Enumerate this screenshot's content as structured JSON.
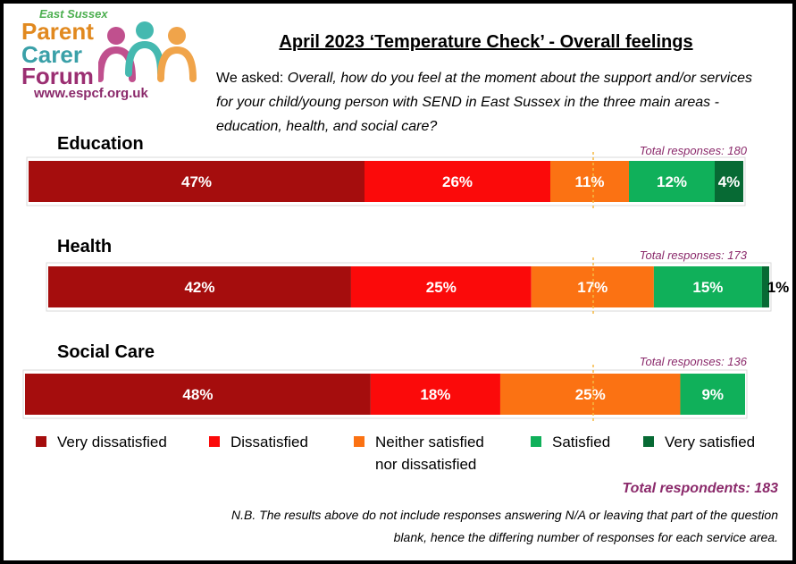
{
  "logo": {
    "line1": "East Sussex",
    "line2": "Parent",
    "line3": "Carer",
    "line4": "Forum",
    "url": "www.espcf.org.uk"
  },
  "title": "April 2023  ‘Temperature Check’ - Overall feelings",
  "question": {
    "prefix": "We asked: ",
    "text": "Overall, how do you feel at the moment about the support and/or services for your child/young person with SEND in East Sussex in the three main areas - education, health, and social care?"
  },
  "chart_data": {
    "type": "bar",
    "orientation": "horizontal-stacked-100",
    "categories": [
      "Education",
      "Health",
      "Social Care"
    ],
    "total_responses": [
      "Total responses: 180",
      "Total responses: 173",
      "Total responses: 136"
    ],
    "series": [
      {
        "name": "Very dissatisfied",
        "color": "#a50d0d",
        "values": [
          47,
          42,
          48
        ]
      },
      {
        "name": "Dissatisfied",
        "color": "#fb0a0a",
        "values": [
          26,
          25,
          18
        ]
      },
      {
        "name": "Neither satisfied nor dissatisfied",
        "color": "#fb7213",
        "values": [
          11,
          17,
          25
        ]
      },
      {
        "name": "Satisfied",
        "color": "#10b05a",
        "values": [
          12,
          15,
          9
        ]
      },
      {
        "name": "Very satisfied",
        "color": "#076a34",
        "values": [
          4,
          1,
          0
        ]
      }
    ],
    "data_labels": [
      [
        "47%",
        "26%",
        "11%",
        "12%",
        "4%"
      ],
      [
        "42%",
        "25%",
        "17%",
        "15%",
        "1%"
      ],
      [
        "48%",
        "18%",
        "25%",
        "9%",
        ""
      ]
    ],
    "legend_placement": "bottom",
    "midpoint_dashed_line": true
  },
  "legend": {
    "items": [
      {
        "label": "Very dissatisfied",
        "color": "#a50d0d"
      },
      {
        "label": "Dissatisfied",
        "color": "#fb0a0a"
      },
      {
        "label": "Neither satisfied",
        "label2": "nor dissatisfied",
        "color": "#fb7213"
      },
      {
        "label": "Satisfied",
        "color": "#10b05a"
      },
      {
        "label": "Very satisfied",
        "color": "#076a34"
      }
    ]
  },
  "total_respondents": "Total respondents: 183",
  "note": "N.B. The results above do not include  responses answering N/A or leaving that part of the question blank, hence the differing number of responses for each service area."
}
